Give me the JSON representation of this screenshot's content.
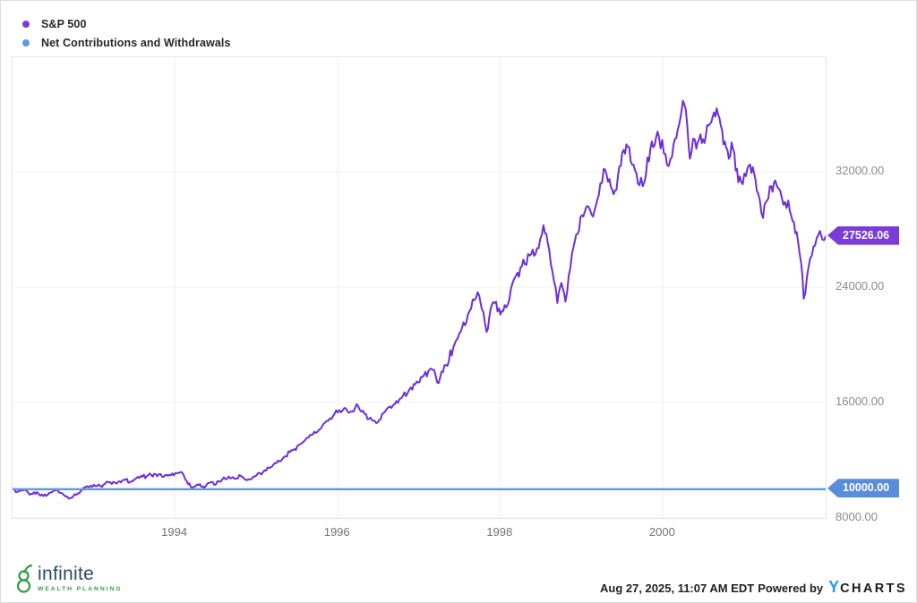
{
  "legend": {
    "items": [
      {
        "label": "S&P 500",
        "color": "#7a3bd3"
      },
      {
        "label": "Net Contributions and Withdrawals",
        "color": "#6494e0"
      }
    ]
  },
  "chart_data": {
    "type": "line",
    "title": "",
    "xlabel": "",
    "ylabel": "",
    "grid": true,
    "legend_position": "top-left",
    "x_range": [
      1992,
      2002
    ],
    "y_range": [
      8000,
      39940
    ],
    "x_ticks": [
      {
        "value": 1994,
        "label": "1994"
      },
      {
        "value": 1996,
        "label": "1996"
      },
      {
        "value": 1998,
        "label": "1998"
      },
      {
        "value": 2000,
        "label": "2000"
      }
    ],
    "y_ticks": [
      {
        "value": 32000,
        "label": "32000.00"
      },
      {
        "value": 24000,
        "label": "24000.00"
      },
      {
        "value": 16000,
        "label": "16000.00"
      },
      {
        "value": 8000,
        "label": "8000.00"
      }
    ],
    "series": [
      {
        "name": "S&P 500",
        "color": "#6c2fd7",
        "badge_color": "#7a3bd9",
        "end_value": 27526.06,
        "end_label": "27526.06",
        "points": [
          [
            1992.0,
            10000
          ],
          [
            1992.06,
            9820
          ],
          [
            1992.14,
            9950
          ],
          [
            1992.21,
            9620
          ],
          [
            1992.3,
            9800
          ],
          [
            1992.38,
            9520
          ],
          [
            1992.47,
            9760
          ],
          [
            1992.55,
            9980
          ],
          [
            1992.63,
            9600
          ],
          [
            1992.71,
            9380
          ],
          [
            1992.8,
            9700
          ],
          [
            1992.9,
            10150
          ],
          [
            1993.0,
            10300
          ],
          [
            1993.08,
            10220
          ],
          [
            1993.18,
            10480
          ],
          [
            1993.28,
            10380
          ],
          [
            1993.37,
            10650
          ],
          [
            1993.46,
            10550
          ],
          [
            1993.56,
            10780
          ],
          [
            1993.65,
            10900
          ],
          [
            1993.76,
            11040
          ],
          [
            1993.84,
            10860
          ],
          [
            1993.93,
            11000
          ],
          [
            1994.02,
            11120
          ],
          [
            1994.08,
            11180
          ],
          [
            1994.14,
            10580
          ],
          [
            1994.21,
            10080
          ],
          [
            1994.27,
            10320
          ],
          [
            1994.34,
            10180
          ],
          [
            1994.42,
            10440
          ],
          [
            1994.5,
            10320
          ],
          [
            1994.58,
            10680
          ],
          [
            1994.66,
            10880
          ],
          [
            1994.73,
            10720
          ],
          [
            1994.81,
            10900
          ],
          [
            1994.88,
            10620
          ],
          [
            1995.0,
            10950
          ],
          [
            1995.1,
            11320
          ],
          [
            1995.21,
            11720
          ],
          [
            1995.32,
            12120
          ],
          [
            1995.43,
            12700
          ],
          [
            1995.54,
            13120
          ],
          [
            1995.64,
            13580
          ],
          [
            1995.73,
            13900
          ],
          [
            1995.81,
            14380
          ],
          [
            1995.9,
            14900
          ],
          [
            1996.0,
            15320
          ],
          [
            1996.08,
            15620
          ],
          [
            1996.16,
            15380
          ],
          [
            1996.25,
            15760
          ],
          [
            1996.33,
            15220
          ],
          [
            1996.42,
            14780
          ],
          [
            1996.49,
            14620
          ],
          [
            1996.58,
            15360
          ],
          [
            1996.68,
            15820
          ],
          [
            1996.78,
            16300
          ],
          [
            1996.88,
            16900
          ],
          [
            1996.97,
            17450
          ],
          [
            1997.06,
            17900
          ],
          [
            1997.15,
            18350
          ],
          [
            1997.24,
            17350
          ],
          [
            1997.33,
            18600
          ],
          [
            1997.42,
            19800
          ],
          [
            1997.51,
            20900
          ],
          [
            1997.6,
            22100
          ],
          [
            1997.68,
            23100
          ],
          [
            1997.74,
            23400
          ],
          [
            1997.79,
            22300
          ],
          [
            1997.83,
            20900
          ],
          [
            1997.88,
            22500
          ],
          [
            1997.93,
            22900
          ],
          [
            1998.0,
            22100
          ],
          [
            1998.07,
            22600
          ],
          [
            1998.13,
            23900
          ],
          [
            1998.21,
            25000
          ],
          [
            1998.3,
            25600
          ],
          [
            1998.38,
            26300
          ],
          [
            1998.45,
            26700
          ],
          [
            1998.53,
            28300
          ],
          [
            1998.6,
            26600
          ],
          [
            1998.66,
            24400
          ],
          [
            1998.7,
            22900
          ],
          [
            1998.75,
            24300
          ],
          [
            1998.8,
            23000
          ],
          [
            1998.88,
            26300
          ],
          [
            1998.95,
            27700
          ],
          [
            1999.02,
            28900
          ],
          [
            1999.08,
            29600
          ],
          [
            1999.14,
            28900
          ],
          [
            1999.21,
            30400
          ],
          [
            1999.27,
            32200
          ],
          [
            1999.34,
            31500
          ],
          [
            1999.41,
            30700
          ],
          [
            1999.48,
            32400
          ],
          [
            1999.55,
            33900
          ],
          [
            1999.62,
            32500
          ],
          [
            1999.69,
            31200
          ],
          [
            1999.75,
            31000
          ],
          [
            1999.81,
            33000
          ],
          [
            1999.88,
            33700
          ],
          [
            1999.95,
            34400
          ],
          [
            2000.01,
            33300
          ],
          [
            2000.07,
            32400
          ],
          [
            2000.13,
            33900
          ],
          [
            2000.18,
            34900
          ],
          [
            2000.23,
            36300
          ],
          [
            2000.26,
            36700
          ],
          [
            2000.3,
            35100
          ],
          [
            2000.33,
            32900
          ],
          [
            2000.37,
            34300
          ],
          [
            2000.41,
            33600
          ],
          [
            2000.46,
            34600
          ],
          [
            2000.51,
            34000
          ],
          [
            2000.56,
            35200
          ],
          [
            2000.61,
            35800
          ],
          [
            2000.66,
            36400
          ],
          [
            2000.71,
            35200
          ],
          [
            2000.76,
            34100
          ],
          [
            2000.81,
            32900
          ],
          [
            2000.86,
            33600
          ],
          [
            2000.91,
            32200
          ],
          [
            2000.96,
            31300
          ],
          [
            2001.02,
            31700
          ],
          [
            2001.07,
            32500
          ],
          [
            2001.12,
            31900
          ],
          [
            2001.17,
            30500
          ],
          [
            2001.23,
            28800
          ],
          [
            2001.28,
            30000
          ],
          [
            2001.33,
            31000
          ],
          [
            2001.38,
            31400
          ],
          [
            2001.44,
            30700
          ],
          [
            2001.5,
            29900
          ],
          [
            2001.56,
            29300
          ],
          [
            2001.61,
            28500
          ],
          [
            2001.66,
            27200
          ],
          [
            2001.7,
            25600
          ],
          [
            2001.73,
            23200
          ],
          [
            2001.77,
            24700
          ],
          [
            2001.81,
            26000
          ],
          [
            2001.85,
            26800
          ],
          [
            2001.89,
            27400
          ],
          [
            2001.93,
            27900
          ],
          [
            2001.96,
            27300
          ],
          [
            2002.0,
            27526.06
          ]
        ]
      },
      {
        "name": "Net Contributions and Withdrawals",
        "color": "#6296e2",
        "badge_color": "#5b8cdc",
        "end_value": 10000,
        "end_label": "10000.00",
        "points": [
          [
            1992.0,
            10000
          ],
          [
            2002.0,
            10000
          ]
        ]
      }
    ]
  },
  "footer": {
    "brand": {
      "name": "infinite",
      "tagline": "WEALTH PLANNING"
    },
    "timestamp": "Aug 27, 2025, 11:07 AM EDT",
    "powered_by": "Powered by",
    "provider": {
      "part1": "Y",
      "part2": "CHARTS"
    }
  }
}
